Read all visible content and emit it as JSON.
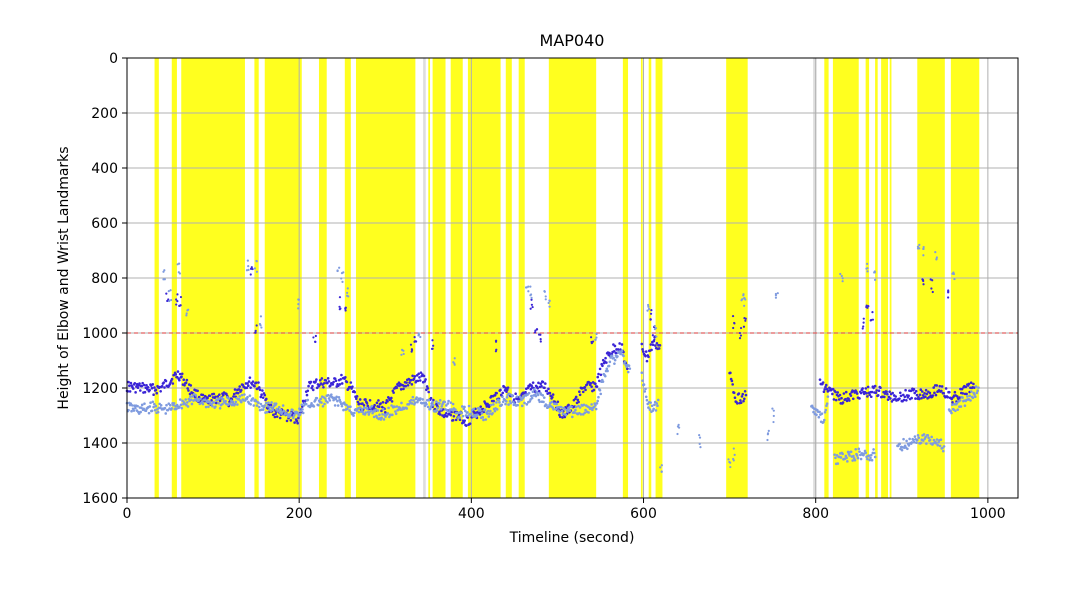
{
  "chart_data": {
    "type": "scatter",
    "title": "MAP040",
    "xlabel": "Timeline (second)",
    "ylabel": "Height of Elbow and Wrist Landmarks",
    "xlim": [
      0,
      1035
    ],
    "ylim": [
      1600,
      0
    ],
    "y_inverted": true,
    "x_ticks": [
      0,
      200,
      400,
      600,
      800,
      1000
    ],
    "x_tick_labels": [
      "0",
      "200",
      "400",
      "600",
      "800",
      "1000"
    ],
    "y_ticks": [
      0,
      200,
      400,
      600,
      800,
      1000,
      1200,
      1400,
      1600
    ],
    "y_tick_labels": [
      "0",
      "200",
      "400",
      "600",
      "800",
      "1000",
      "1200",
      "1400",
      "1600"
    ],
    "grid": true,
    "threshold_line": {
      "y": 1000,
      "color": "#e06060",
      "style": "dashed"
    },
    "yellow_spans": [
      [
        32,
        37
      ],
      [
        52,
        58
      ],
      [
        63,
        137
      ],
      [
        148,
        153
      ],
      [
        160,
        203
      ],
      [
        223,
        232
      ],
      [
        253,
        260
      ],
      [
        266,
        335
      ],
      [
        350,
        352
      ],
      [
        355,
        370
      ],
      [
        376,
        390
      ],
      [
        396,
        434
      ],
      [
        440,
        447
      ],
      [
        455,
        462
      ],
      [
        490,
        545
      ],
      [
        576,
        582
      ],
      [
        597,
        599
      ],
      [
        606,
        609
      ],
      [
        614,
        622
      ],
      [
        696,
        721
      ],
      [
        810,
        815
      ],
      [
        820,
        850
      ],
      [
        858,
        862
      ],
      [
        869,
        872
      ],
      [
        876,
        884
      ],
      [
        886,
        888
      ],
      [
        918,
        950
      ],
      [
        957,
        990
      ]
    ],
    "gray_spans": [
      [
        797,
        801
      ],
      [
        344,
        347
      ]
    ],
    "series": [
      {
        "color": "#3a24d6",
        "segments": [
          [
            [
              0,
              1195
            ],
            [
              30,
              1205
            ],
            [
              40,
              1200
            ],
            [
              55,
              1160
            ],
            [
              60,
              1150
            ],
            [
              65,
              1170
            ],
            [
              75,
              1210
            ],
            [
              90,
              1250
            ],
            [
              100,
              1240
            ],
            [
              110,
              1230
            ],
            [
              120,
              1250
            ],
            [
              130,
              1200
            ],
            [
              140,
              1180
            ],
            [
              150,
              1185
            ],
            [
              160,
              1240
            ],
            [
              170,
              1290
            ],
            [
              185,
              1300
            ],
            [
              200,
              1310
            ],
            [
              210,
              1200
            ],
            [
              220,
              1185
            ],
            [
              230,
              1180
            ],
            [
              240,
              1185
            ],
            [
              250,
              1170
            ],
            [
              260,
              1200
            ],
            [
              270,
              1260
            ],
            [
              285,
              1260
            ],
            [
              300,
              1270
            ],
            [
              315,
              1200
            ],
            [
              330,
              1175
            ],
            [
              345,
              1160
            ],
            [
              355,
              1260
            ],
            [
              370,
              1300
            ],
            [
              385,
              1300
            ],
            [
              395,
              1320
            ],
            [
              410,
              1280
            ],
            [
              425,
              1240
            ],
            [
              440,
              1200
            ],
            [
              455,
              1250
            ],
            [
              470,
              1200
            ],
            [
              485,
              1195
            ],
            [
              495,
              1230
            ],
            [
              505,
              1300
            ],
            [
              520,
              1260
            ],
            [
              530,
              1200
            ],
            [
              545,
              1190
            ],
            [
              555,
              1100
            ],
            [
              565,
              1060
            ],
            [
              575,
              1050
            ],
            [
              582,
              1160
            ]
          ],
          [
            [
              598,
              1050
            ],
            [
              604,
              1090
            ],
            [
              612,
              1030
            ],
            [
              620,
              1060
            ]
          ],
          [
            [
              700,
              1150
            ],
            [
              708,
              1240
            ],
            [
              718,
              1230
            ],
            [
              720,
              1240
            ]
          ],
          [
            [
              805,
              1180
            ],
            [
              815,
              1210
            ],
            [
              830,
              1240
            ],
            [
              850,
              1220
            ],
            [
              870,
              1210
            ],
            [
              885,
              1230
            ],
            [
              900,
              1230
            ],
            [
              915,
              1220
            ],
            [
              930,
              1220
            ],
            [
              945,
              1200
            ],
            [
              958,
              1240
            ],
            [
              970,
              1220
            ],
            [
              985,
              1180
            ]
          ]
        ],
        "outliers": [
          [
            47,
            860
          ],
          [
            58,
            880
          ],
          [
            62,
            890
          ],
          [
            150,
            980
          ],
          [
            145,
            770
          ],
          [
            218,
            1030
          ],
          [
            248,
            890
          ],
          [
            255,
            930
          ],
          [
            330,
            1060
          ],
          [
            335,
            1010
          ],
          [
            355,
            1050
          ],
          [
            430,
            1050
          ],
          [
            470,
            900
          ],
          [
            475,
            990
          ],
          [
            480,
            1010
          ],
          [
            540,
            1020
          ],
          [
            608,
            940
          ],
          [
            612,
            1000
          ],
          [
            705,
            960
          ],
          [
            712,
            1000
          ],
          [
            718,
            970
          ],
          [
            855,
            960
          ],
          [
            860,
            920
          ],
          [
            865,
            930
          ],
          [
            925,
            820
          ],
          [
            935,
            830
          ],
          [
            955,
            870
          ]
        ]
      },
      {
        "color": "#7f9bdf",
        "segments": [
          [
            [
              0,
              1270
            ],
            [
              15,
              1280
            ],
            [
              30,
              1270
            ],
            [
              45,
              1280
            ],
            [
              60,
              1260
            ],
            [
              80,
              1240
            ],
            [
              100,
              1260
            ],
            [
              120,
              1250
            ],
            [
              140,
              1240
            ],
            [
              160,
              1270
            ],
            [
              175,
              1270
            ],
            [
              195,
              1300
            ],
            [
              210,
              1260
            ],
            [
              225,
              1250
            ],
            [
              240,
              1240
            ],
            [
              255,
              1270
            ],
            [
              265,
              1290
            ],
            [
              280,
              1280
            ],
            [
              295,
              1300
            ],
            [
              310,
              1280
            ],
            [
              325,
              1260
            ],
            [
              340,
              1240
            ],
            [
              355,
              1270
            ],
            [
              370,
              1260
            ],
            [
              385,
              1290
            ],
            [
              400,
              1280
            ],
            [
              415,
              1300
            ],
            [
              430,
              1260
            ],
            [
              445,
              1240
            ],
            [
              460,
              1250
            ],
            [
              475,
              1220
            ],
            [
              490,
              1260
            ],
            [
              510,
              1290
            ],
            [
              530,
              1280
            ],
            [
              545,
              1260
            ],
            [
              560,
              1100
            ],
            [
              575,
              1080
            ],
            [
              585,
              1140
            ]
          ],
          [
            [
              598,
              1150
            ],
            [
              604,
              1250
            ],
            [
              610,
              1270
            ],
            [
              618,
              1260
            ]
          ],
          [
            [
              795,
              1260
            ],
            [
              800,
              1290
            ],
            [
              810,
              1320
            ],
            [
              815,
              1200
            ]
          ],
          [
            [
              822,
              1460
            ],
            [
              835,
              1450
            ],
            [
              850,
              1440
            ],
            [
              860,
              1450
            ],
            [
              870,
              1440
            ]
          ],
          [
            [
              895,
              1410
            ],
            [
              910,
              1400
            ],
            [
              925,
              1380
            ],
            [
              940,
              1390
            ],
            [
              950,
              1420
            ]
          ],
          [
            [
              955,
              1290
            ],
            [
              965,
              1260
            ],
            [
              978,
              1240
            ],
            [
              990,
              1200
            ]
          ]
        ],
        "outliers": [
          [
            43,
            790
          ],
          [
            50,
            860
          ],
          [
            60,
            760
          ],
          [
            70,
            920
          ],
          [
            140,
            760
          ],
          [
            150,
            760
          ],
          [
            155,
            960
          ],
          [
            200,
            900
          ],
          [
            245,
            780
          ],
          [
            250,
            790
          ],
          [
            257,
            860
          ],
          [
            320,
            1060
          ],
          [
            340,
            1000
          ],
          [
            380,
            1100
          ],
          [
            465,
            830
          ],
          [
            470,
            850
          ],
          [
            485,
            860
          ],
          [
            490,
            880
          ],
          [
            545,
            1000
          ],
          [
            605,
            900
          ],
          [
            614,
            990
          ],
          [
            620,
            1500
          ],
          [
            640,
            1350
          ],
          [
            665,
            1390
          ],
          [
            700,
            1480
          ],
          [
            705,
            1440
          ],
          [
            715,
            870
          ],
          [
            718,
            880
          ],
          [
            755,
            870
          ],
          [
            750,
            1300
          ],
          [
            745,
            1380
          ],
          [
            830,
            790
          ],
          [
            860,
            770
          ],
          [
            868,
            800
          ],
          [
            920,
            680
          ],
          [
            925,
            700
          ],
          [
            940,
            730
          ],
          [
            960,
            780
          ]
        ]
      }
    ]
  }
}
